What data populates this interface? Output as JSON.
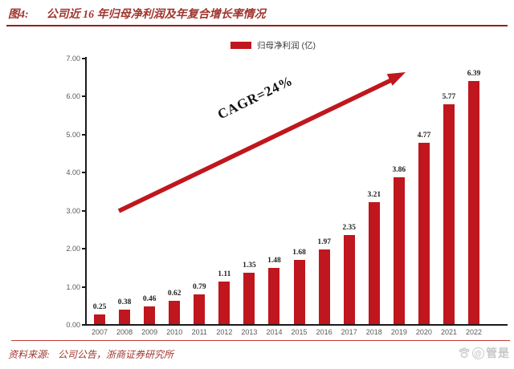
{
  "header": {
    "figure_label": "图4:",
    "title": "公司近 16 年归母净利润及年复合增长率情况"
  },
  "legend": {
    "label": "归母净利润 (亿)"
  },
  "annotation": {
    "cagr": "CAGR=24%"
  },
  "footer": {
    "source_label": "资料来源:",
    "source_text": "公司公告，浙商证券研究所"
  },
  "watermark": {
    "text": "管是",
    "at_symbol": "@",
    "icon": "paw-icon"
  },
  "colors": {
    "bar_red": "#c0161d",
    "title_red": "#a0362e",
    "rule_dark_red": "#8e241e",
    "rule_red": "#c33a35",
    "axis_gray": "#595959",
    "axis_black": "#1a1a1a",
    "value_dark": "#212121",
    "watermark_gray": "#c8c8c8"
  },
  "chart_data": {
    "type": "bar",
    "title": "公司近 16 年归母净利润及年复合增长率情况",
    "series_name": "归母净利润 (亿)",
    "categories": [
      "2007",
      "2008",
      "2009",
      "2010",
      "2011",
      "2012",
      "2013",
      "2014",
      "2015",
      "2016",
      "2017",
      "2018",
      "2019",
      "2020",
      "2021",
      "2022"
    ],
    "values": [
      0.25,
      0.38,
      0.46,
      0.62,
      0.79,
      1.11,
      1.35,
      1.48,
      1.68,
      1.97,
      2.35,
      3.21,
      3.86,
      4.77,
      5.77,
      6.39
    ],
    "annotation": "CAGR=24%",
    "xlabel": "",
    "ylabel": "",
    "ylim": [
      0,
      7
    ],
    "ytick_step": 1,
    "ytick_labels": [
      "0.00",
      "1.00",
      "2.00",
      "3.00",
      "4.00",
      "5.00",
      "6.00",
      "7.00"
    ],
    "grid": false,
    "legend_position": "top-center",
    "bar_color": "#c0161d"
  }
}
